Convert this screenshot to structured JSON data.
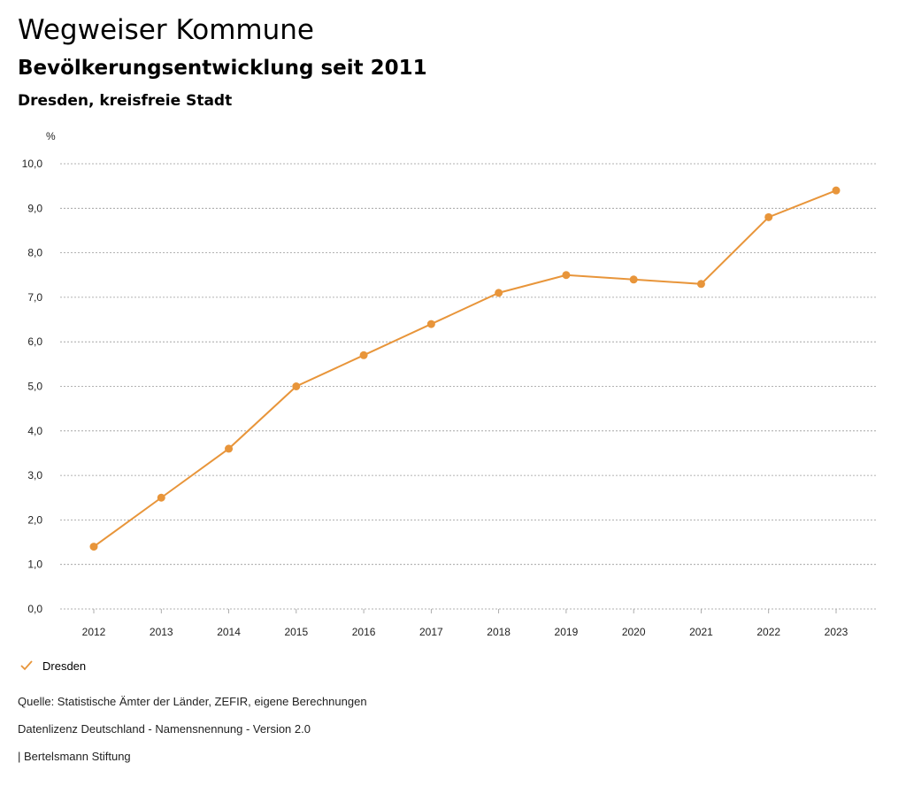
{
  "header": {
    "title": "Wegweiser Kommune",
    "subtitle": "Bevölkerungsentwicklung seit 2011",
    "region": "Dresden, kreisfreie Stadt"
  },
  "chart_data": {
    "type": "line",
    "unit_label": "%",
    "x": [
      "2012",
      "2013",
      "2014",
      "2015",
      "2016",
      "2017",
      "2018",
      "2019",
      "2020",
      "2021",
      "2022",
      "2023"
    ],
    "series": [
      {
        "name": "Dresden",
        "color": "#e8953a",
        "values": [
          1.4,
          2.5,
          3.6,
          5.0,
          5.7,
          6.4,
          7.1,
          7.5,
          7.4,
          7.3,
          8.8,
          9.4
        ]
      }
    ],
    "ylim": [
      0,
      10
    ],
    "yticks": [
      "0,0",
      "1,0",
      "2,0",
      "3,0",
      "4,0",
      "5,0",
      "6,0",
      "7,0",
      "8,0",
      "9,0",
      "10,0"
    ],
    "grid": true,
    "legend_position": "bottom-left"
  },
  "legend": {
    "icon": "check-icon",
    "label": "Dresden"
  },
  "footer": {
    "source": "Quelle: Statistische Ämter der Länder, ZEFIR, eigene Berechnungen",
    "license": "Datenlizenz Deutschland - Namensnennung - Version 2.0",
    "publisher": "| Bertelsmann Stiftung"
  }
}
